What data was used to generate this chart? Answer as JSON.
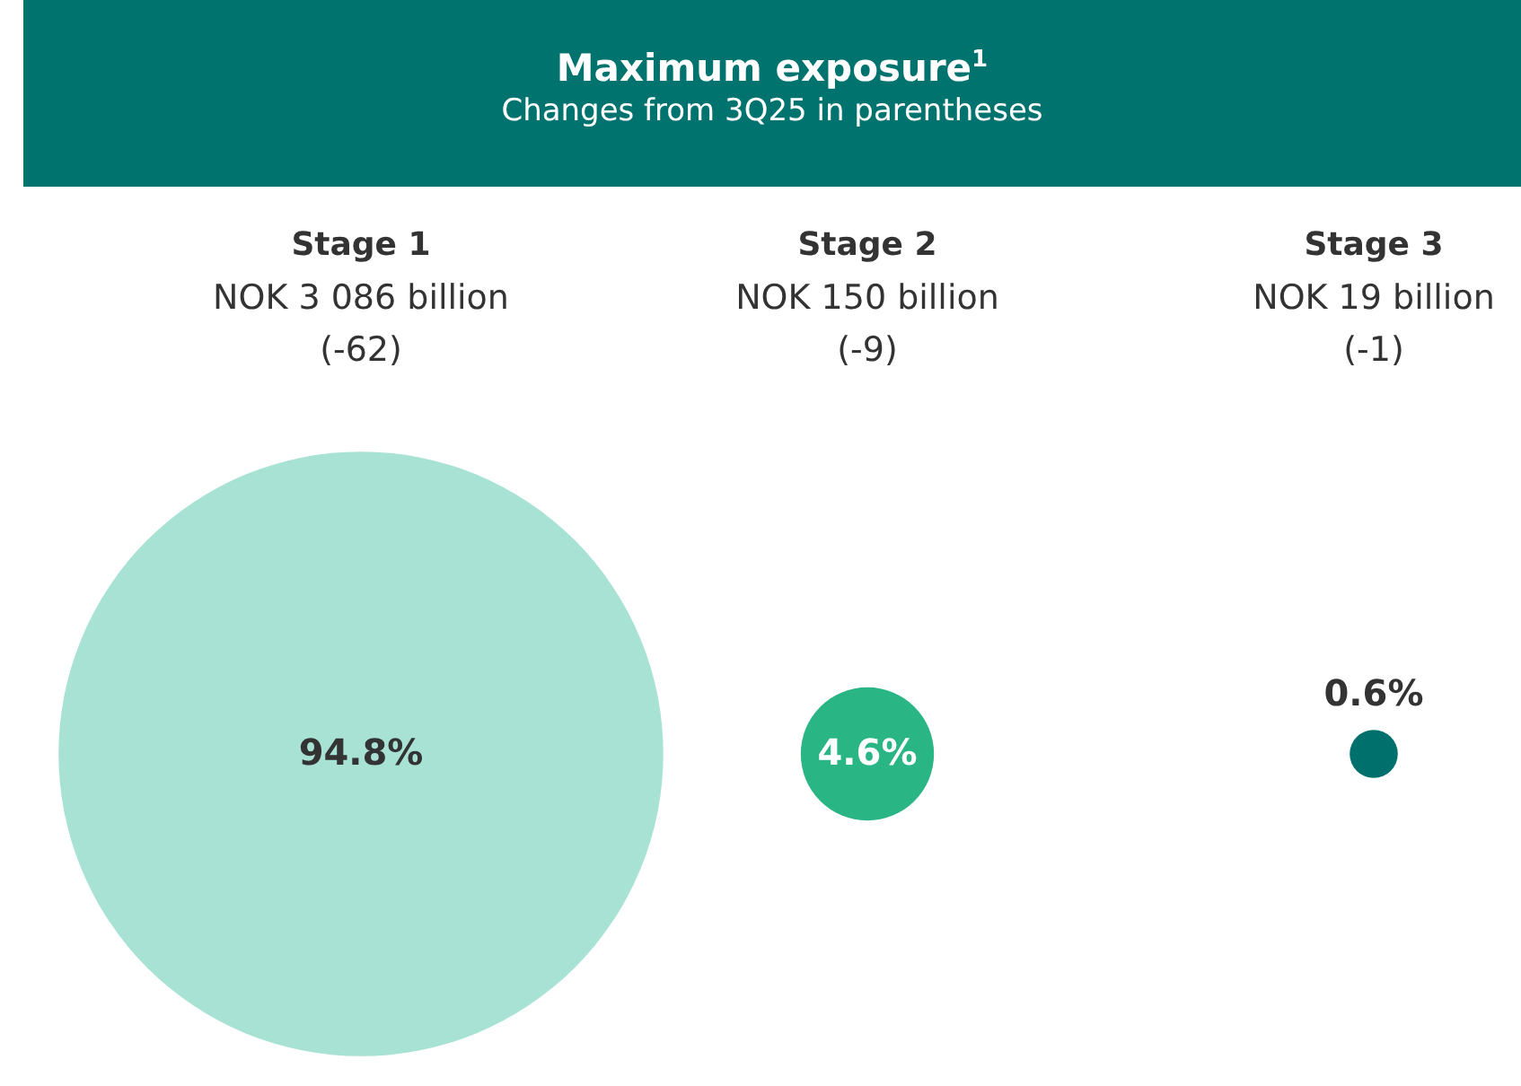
{
  "chart_data": {
    "type": "other",
    "title": "Maximum exposure$^{1}$",
    "subtitle": "Changes from 3Q25 in parentheses",
    "categories": [
      "Stage 1",
      "Stage 2",
      "Stage 3"
    ],
    "values": [
      94.8,
      4.6,
      0.6
    ],
    "colors": [
      "#a8e2d4",
      "#2ab585",
      "#00706c"
    ],
    "value_labels": [
      "94.8%",
      "4.6%",
      "0.6%"
    ],
    "annotations": [
      {
        "text": "NOK 3 086 billion",
        "x": "Stage 1"
      },
      {
        "text": "(-62)",
        "x": "Stage 1"
      },
      {
        "text": "NOK 150 billion",
        "x": "Stage 2"
      },
      {
        "text": "(-9)",
        "x": "Stage 2"
      },
      {
        "text": "NOK 19 billion",
        "x": "Stage 3"
      },
      {
        "text": "(-1)",
        "x": "Stage 3"
      }
    ]
  }
}
